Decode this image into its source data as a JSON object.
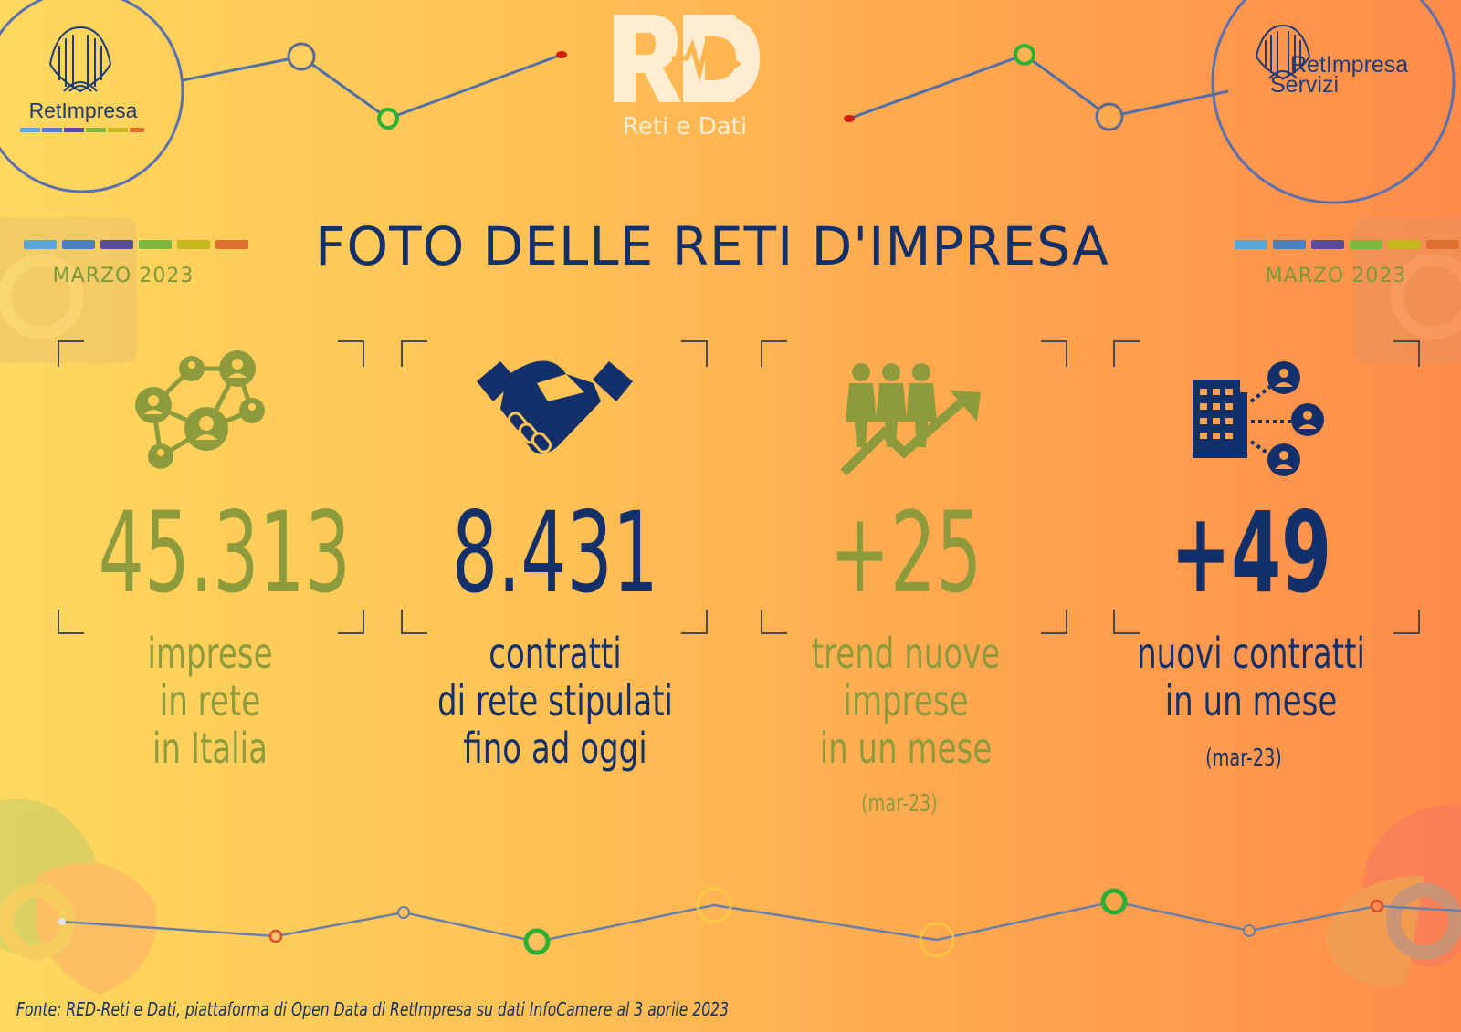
{
  "brand": {
    "left_logo_text": "RetImpresa",
    "right_logo_text_1": "RetImpresa",
    "right_logo_text_2": "Servizi",
    "center_logo_subtitle": "Reti e Dati"
  },
  "header": {
    "title": "FOTO DELLE RETI D'IMPRESA",
    "date_left": "MARZO  2023",
    "date_right": "MARZO  2023"
  },
  "stats": [
    {
      "value": "45.313",
      "label_lines": [
        "imprese",
        "in rete",
        "in Italia"
      ],
      "note": "",
      "icon": "network-people-icon"
    },
    {
      "value": "8.431",
      "label_lines": [
        "contratti",
        "di rete stipulati",
        "fino ad oggi"
      ],
      "note": "",
      "icon": "handshake-icon"
    },
    {
      "value": "+25",
      "label_lines": [
        "trend nuove",
        "imprese",
        "in un mese"
      ],
      "note": "(mar-23)",
      "icon": "people-growth-icon"
    },
    {
      "value": "+49",
      "label_lines": [
        "nuovi contratti",
        "in un mese"
      ],
      "note": "(mar-23)",
      "icon": "building-network-icon"
    }
  ],
  "footer": {
    "source": "Fonte: RED-Reti e Dati, piattaforma di Open Data di RetImpresa su dati InfoCamere al 3 aprile 2023"
  },
  "colors": {
    "navy": "#14306a",
    "olive": "#8d9b3c",
    "stripe": [
      "#5aa8d8",
      "#4a7fc0",
      "#5a4a9a",
      "#7ab840",
      "#c8b820",
      "#e07030"
    ]
  }
}
